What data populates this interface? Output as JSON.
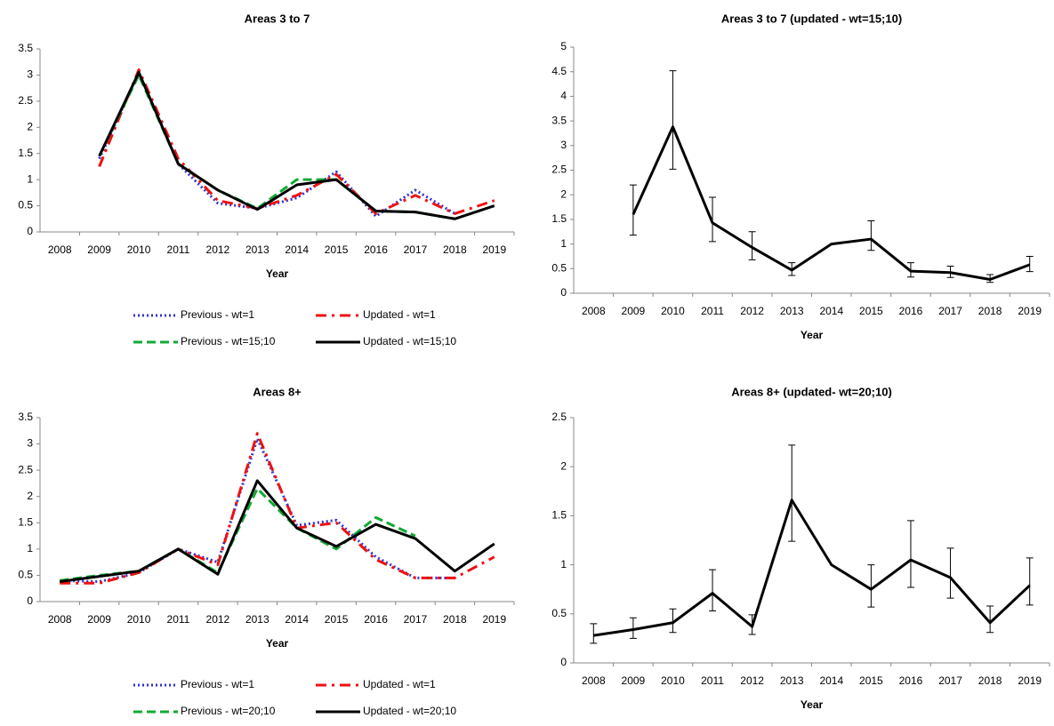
{
  "chart_data": [
    {
      "type": "line",
      "title": "Areas 3 to 7",
      "x_label": "Year",
      "categories": [
        "2008",
        "2009",
        "2010",
        "2011",
        "2012",
        "2013",
        "2014",
        "2015",
        "2016",
        "2017",
        "2018",
        "2019"
      ],
      "ylim": [
        0,
        3.5
      ],
      "yticks": [
        0,
        0.5,
        1,
        1.5,
        2,
        2.5,
        3,
        3.5
      ],
      "legend": "bottom",
      "series": [
        {
          "name": "Previous - wt=1",
          "color": "#3333cc",
          "dash": "dotted",
          "values": [
            null,
            1.4,
            3.05,
            1.3,
            0.55,
            0.45,
            0.65,
            1.15,
            0.3,
            0.8,
            0.35,
            null
          ]
        },
        {
          "name": "Updated - wt=1",
          "color": "#ee1111",
          "dash": "dash-dot",
          "values": [
            null,
            1.25,
            3.1,
            1.4,
            0.6,
            0.45,
            0.7,
            1.1,
            0.35,
            0.7,
            0.35,
            0.6
          ]
        },
        {
          "name": "Previous - wt=15;10",
          "color": "#11aa33",
          "dash": "dashed",
          "values": [
            null,
            1.45,
            3.0,
            1.3,
            0.8,
            0.45,
            1.0,
            1.0,
            0.4,
            0.38,
            0.25,
            null
          ]
        },
        {
          "name": "Updated - wt=15;10",
          "color": "#000000",
          "dash": "solid",
          "values": [
            null,
            1.45,
            3.05,
            1.3,
            0.8,
            0.43,
            0.9,
            1.0,
            0.4,
            0.38,
            0.25,
            0.5
          ]
        }
      ]
    },
    {
      "type": "errorline",
      "title": "Areas 3 to 7 (updated - wt=15;10)",
      "x_label": "Year",
      "categories": [
        "2008",
        "2009",
        "2010",
        "2011",
        "2012",
        "2013",
        "2014",
        "2015",
        "2016",
        "2017",
        "2018",
        "2019"
      ],
      "ylim": [
        0,
        5
      ],
      "yticks": [
        0,
        0.5,
        1,
        1.5,
        2,
        2.5,
        3,
        3.5,
        4,
        4.5,
        5
      ],
      "series": [
        {
          "color": "#000000",
          "dash": "solid",
          "values": [
            null,
            1.6,
            3.38,
            1.43,
            0.93,
            0.47,
            1.0,
            1.1,
            0.45,
            0.42,
            0.28,
            0.58
          ],
          "lower": [
            null,
            1.18,
            2.52,
            1.05,
            0.68,
            0.36,
            null,
            0.87,
            0.33,
            0.32,
            0.22,
            0.44
          ],
          "upper": [
            null,
            2.2,
            4.52,
            1.95,
            1.25,
            0.62,
            null,
            1.47,
            0.62,
            0.55,
            0.38,
            0.75
          ]
        }
      ]
    },
    {
      "type": "line",
      "title": "Areas 8+",
      "x_label": "Year",
      "categories": [
        "2008",
        "2009",
        "2010",
        "2011",
        "2012",
        "2013",
        "2014",
        "2015",
        "2016",
        "2017",
        "2018",
        "2019"
      ],
      "ylim": [
        0,
        3.5
      ],
      "yticks": [
        0,
        0.5,
        1,
        1.5,
        2,
        2.5,
        3,
        3.5
      ],
      "legend": "bottom",
      "series": [
        {
          "name": "Previous - wt=1",
          "color": "#3333cc",
          "dash": "dotted",
          "values": [
            0.4,
            0.38,
            0.55,
            1.0,
            0.75,
            3.1,
            1.45,
            1.55,
            0.85,
            0.45,
            0.45,
            null
          ]
        },
        {
          "name": "Updated - wt=1",
          "color": "#ee1111",
          "dash": "dash-dot",
          "values": [
            0.35,
            0.35,
            0.55,
            1.0,
            0.7,
            3.2,
            1.4,
            1.5,
            0.8,
            0.45,
            0.45,
            0.85
          ]
        },
        {
          "name": "Previous - wt=20;10",
          "color": "#11aa33",
          "dash": "dashed",
          "values": [
            0.4,
            0.5,
            0.58,
            1.0,
            0.55,
            2.15,
            1.4,
            1.0,
            1.6,
            1.25,
            null,
            null
          ]
        },
        {
          "name": "Updated - wt=20;10",
          "color": "#000000",
          "dash": "solid",
          "values": [
            0.38,
            0.48,
            0.58,
            1.0,
            0.52,
            2.3,
            1.4,
            1.05,
            1.47,
            1.2,
            0.58,
            1.1
          ]
        }
      ]
    },
    {
      "type": "errorline",
      "title": "Areas 8+ (updated- wt=20;10)",
      "x_label": "Year",
      "categories": [
        "2008",
        "2009",
        "2010",
        "2011",
        "2012",
        "2013",
        "2014",
        "2015",
        "2016",
        "2017",
        "2018",
        "2019"
      ],
      "ylim": [
        0,
        2.5
      ],
      "yticks": [
        0,
        0.5,
        1,
        1.5,
        2,
        2.5
      ],
      "series": [
        {
          "color": "#000000",
          "dash": "solid",
          "values": [
            0.28,
            0.34,
            0.41,
            0.71,
            0.37,
            1.66,
            1.0,
            0.75,
            1.05,
            0.87,
            0.41,
            0.79
          ],
          "lower": [
            0.2,
            0.25,
            0.31,
            0.53,
            0.29,
            1.24,
            null,
            0.57,
            0.77,
            0.66,
            0.31,
            0.59
          ],
          "upper": [
            0.4,
            0.46,
            0.55,
            0.95,
            0.49,
            2.22,
            null,
            1.0,
            1.45,
            1.17,
            0.58,
            1.07
          ]
        }
      ]
    }
  ]
}
